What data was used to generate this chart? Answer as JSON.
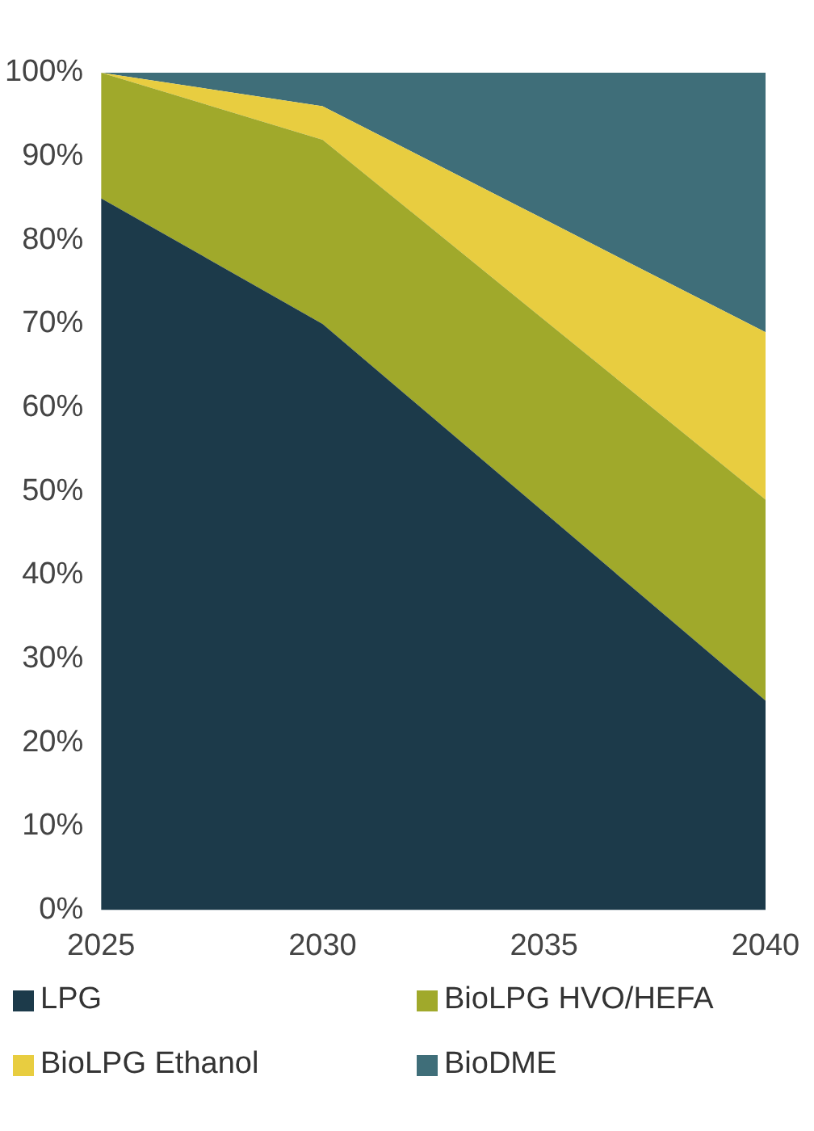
{
  "chart_data": {
    "type": "area",
    "stacked": true,
    "x": [
      2025,
      2030,
      2035,
      2040
    ],
    "xlim": [
      2025,
      2040
    ],
    "xticks": [
      2025,
      2030,
      2035,
      2040
    ],
    "ylim": [
      0,
      100
    ],
    "yticks": [
      {
        "value": 0,
        "label": "0%"
      },
      {
        "value": 10,
        "label": "10%"
      },
      {
        "value": 20,
        "label": "20%"
      },
      {
        "value": 30,
        "label": "30%"
      },
      {
        "value": 40,
        "label": "40%"
      },
      {
        "value": 50,
        "label": "50%"
      },
      {
        "value": 60,
        "label": "60%"
      },
      {
        "value": 70,
        "label": "70%"
      },
      {
        "value": 80,
        "label": "80%"
      },
      {
        "value": 90,
        "label": "90%"
      },
      {
        "value": 100,
        "label": "100%"
      }
    ],
    "grid": false,
    "legend": "bottom",
    "series": [
      {
        "name": "LPG",
        "color": "#1c3a4a",
        "values": [
          85,
          70,
          47.5,
          25
        ]
      },
      {
        "name": "BioLPG HVO/HEFA",
        "color": "#a0a92b",
        "values": [
          15,
          22,
          23,
          24
        ]
      },
      {
        "name": "BioLPG Ethanol",
        "color": "#e8cd40",
        "values": [
          0,
          4,
          12,
          20
        ]
      },
      {
        "name": "BioDME",
        "color": "#3f6e79",
        "values": [
          0,
          4,
          17.5,
          31
        ]
      }
    ]
  }
}
